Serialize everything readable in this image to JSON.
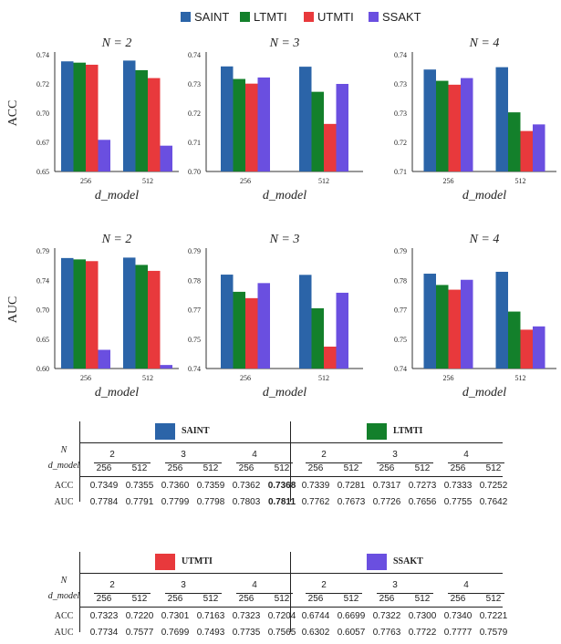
{
  "legend": [
    {
      "name": "SAINT",
      "color": "#2b64a8"
    },
    {
      "name": "LTMTI",
      "color": "#13802b"
    },
    {
      "name": "UTMTI",
      "color": "#e8393c"
    },
    {
      "name": "SSAKT",
      "color": "#6a4fe0"
    }
  ],
  "chart_data": [
    {
      "type": "bar",
      "title": "N = 2",
      "ylabel": "ACC",
      "xlabel": "d_model",
      "categories": [
        "256",
        "512"
      ],
      "yticks": [
        "0.65",
        "0.67",
        "0.70",
        "0.72",
        "0.74"
      ],
      "ylim": [
        0.65,
        0.74
      ],
      "series": [
        {
          "name": "SAINT",
          "values": [
            0.7349,
            0.7355
          ]
        },
        {
          "name": "LTMTI",
          "values": [
            0.7339,
            0.7281
          ]
        },
        {
          "name": "UTMTI",
          "values": [
            0.7323,
            0.722
          ]
        },
        {
          "name": "SSAKT",
          "values": [
            0.6744,
            0.6699
          ]
        }
      ]
    },
    {
      "type": "bar",
      "title": "N = 3",
      "ylabel": "",
      "xlabel": "d_model",
      "categories": [
        "256",
        "512"
      ],
      "yticks": [
        "0.70",
        "0.71",
        "0.72",
        "0.73",
        "0.74"
      ],
      "ylim": [
        0.7,
        0.74
      ],
      "series": [
        {
          "name": "SAINT",
          "values": [
            0.736,
            0.7359
          ]
        },
        {
          "name": "LTMTI",
          "values": [
            0.7317,
            0.7273
          ]
        },
        {
          "name": "UTMTI",
          "values": [
            0.7301,
            0.7163
          ]
        },
        {
          "name": "SSAKT",
          "values": [
            0.7322,
            0.73
          ]
        }
      ]
    },
    {
      "type": "bar",
      "title": "N = 4",
      "ylabel": "",
      "xlabel": "d_model",
      "categories": [
        "256",
        "512"
      ],
      "yticks": [
        "0.71",
        "0.72",
        "0.73",
        "0.73",
        "0.74"
      ],
      "ylim": [
        0.71,
        0.74
      ],
      "series": [
        {
          "name": "SAINT",
          "values": [
            0.7362,
            0.7368
          ]
        },
        {
          "name": "LTMTI",
          "values": [
            0.7333,
            0.7252
          ]
        },
        {
          "name": "UTMTI",
          "values": [
            0.7323,
            0.7204
          ]
        },
        {
          "name": "SSAKT",
          "values": [
            0.734,
            0.7221
          ]
        }
      ]
    },
    {
      "type": "bar",
      "title": "N = 2",
      "ylabel": "AUC",
      "xlabel": "d_model",
      "categories": [
        "256",
        "512"
      ],
      "yticks": [
        "0.60",
        "0.65",
        "0.70",
        "0.74",
        "0.79"
      ],
      "ylim": [
        0.6,
        0.79
      ],
      "series": [
        {
          "name": "SAINT",
          "values": [
            0.7784,
            0.7791
          ]
        },
        {
          "name": "LTMTI",
          "values": [
            0.7762,
            0.7673
          ]
        },
        {
          "name": "UTMTI",
          "values": [
            0.7734,
            0.7577
          ]
        },
        {
          "name": "SSAKT",
          "values": [
            0.6302,
            0.6057
          ]
        }
      ]
    },
    {
      "type": "bar",
      "title": "N = 3",
      "ylabel": "",
      "xlabel": "d_model",
      "categories": [
        "256",
        "512"
      ],
      "yticks": [
        "0.74",
        "0.75",
        "0.77",
        "0.78",
        "0.79"
      ],
      "ylim": [
        0.74,
        0.79
      ],
      "series": [
        {
          "name": "SAINT",
          "values": [
            0.7799,
            0.7798
          ]
        },
        {
          "name": "LTMTI",
          "values": [
            0.7726,
            0.7656
          ]
        },
        {
          "name": "UTMTI",
          "values": [
            0.7699,
            0.7493
          ]
        },
        {
          "name": "SSAKT",
          "values": [
            0.7763,
            0.7722
          ]
        }
      ]
    },
    {
      "type": "bar",
      "title": "N = 4",
      "ylabel": "",
      "xlabel": "d_model",
      "categories": [
        "256",
        "512"
      ],
      "yticks": [
        "0.74",
        "0.75",
        "0.77",
        "0.78",
        "0.79"
      ],
      "ylim": [
        0.74,
        0.79
      ],
      "series": [
        {
          "name": "SAINT",
          "values": [
            0.7803,
            0.7811
          ]
        },
        {
          "name": "LTMTI",
          "values": [
            0.7755,
            0.7642
          ]
        },
        {
          "name": "UTMTI",
          "values": [
            0.7735,
            0.7565
          ]
        },
        {
          "name": "SSAKT",
          "values": [
            0.7777,
            0.7579
          ]
        }
      ]
    }
  ],
  "tables": [
    {
      "groups": [
        {
          "name": "SAINT",
          "color": "#2b64a8",
          "acc": [
            "0.7349",
            "0.7355",
            "0.7360",
            "0.7359",
            "0.7362",
            "0.7368"
          ],
          "auc": [
            "0.7784",
            "0.7791",
            "0.7799",
            "0.7798",
            "0.7803",
            "0.7811"
          ],
          "bold_acc": [
            5
          ],
          "bold_auc": [
            5
          ]
        },
        {
          "name": "LTMTI",
          "color": "#13802b",
          "acc": [
            "0.7339",
            "0.7281",
            "0.7317",
            "0.7273",
            "0.7333",
            "0.7252"
          ],
          "auc": [
            "0.7762",
            "0.7673",
            "0.7726",
            "0.7656",
            "0.7755",
            "0.7642"
          ],
          "bold_acc": [],
          "bold_auc": []
        }
      ]
    },
    {
      "groups": [
        {
          "name": "UTMTI",
          "color": "#e8393c",
          "acc": [
            "0.7323",
            "0.7220",
            "0.7301",
            "0.7163",
            "0.7323",
            "0.7204"
          ],
          "auc": [
            "0.7734",
            "0.7577",
            "0.7699",
            "0.7493",
            "0.7735",
            "0.7565"
          ],
          "bold_acc": [],
          "bold_auc": []
        },
        {
          "name": "SSAKT",
          "color": "#6a4fe0",
          "acc": [
            "0.6744",
            "0.6699",
            "0.7322",
            "0.7300",
            "0.7340",
            "0.7221"
          ],
          "auc": [
            "0.6302",
            "0.6057",
            "0.7763",
            "0.7722",
            "0.7777",
            "0.7579"
          ],
          "bold_acc": [],
          "bold_auc": []
        }
      ]
    }
  ],
  "table_labels": {
    "n": "N",
    "d_model": "d_model",
    "acc": "ACC",
    "auc": "AUC",
    "n_values": [
      "2",
      "3",
      "4"
    ],
    "d_values": [
      "256",
      "512",
      "256",
      "512",
      "256",
      "512"
    ]
  }
}
